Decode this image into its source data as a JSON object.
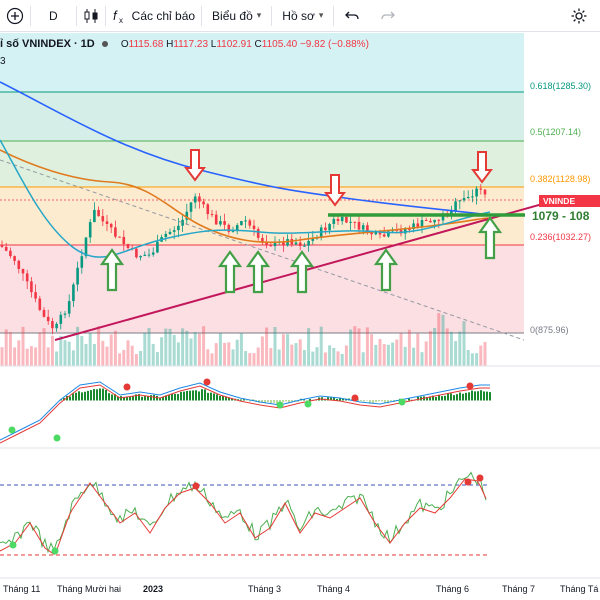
{
  "toolbar": {
    "symbol": "D",
    "indicators_label": "Các chỉ báo",
    "chart_type_label": "Biểu đồ",
    "profile_label": "Hồ sơ",
    "dropdown_glyph": "▾"
  },
  "legend": {
    "symbol": "ỉ số VNINDEX · 1D",
    "o": "O",
    "o_val": "1115.68",
    "h": "H",
    "h_val": "1117.23",
    "l": "L",
    "l_val": "1102.91",
    "c": "C",
    "c_val": "1105.40",
    "change": "−9.82 (−0.88%)",
    "corner": "3"
  },
  "fib_levels": [
    {
      "label": "0.618(1285.30)",
      "color": "#089981"
    },
    {
      "label": "0.5(1207.14)",
      "color": "#4caf50"
    },
    {
      "label": "0.382(1128.98)",
      "color": "#ff9800"
    },
    {
      "label": "0.236(1032.27)",
      "color": "#f23645"
    },
    {
      "label": "0(875.96)",
      "color": "#787b86"
    }
  ],
  "annotations": {
    "support_zone": "1079 - 108",
    "price_badge": "VNINDE"
  },
  "x_axis": [
    "Tháng 11",
    "Tháng Mười hai",
    "2023",
    "Tháng 3",
    "Tháng 4",
    "Tháng 6",
    "Tháng 7",
    "Tháng Tá"
  ],
  "colors": {
    "up": "#089981",
    "down": "#f23645",
    "ma_blue": "#2962ff",
    "ma_orange": "#e07a1f",
    "ma_cyan": "#26a7c7",
    "trendline": "#c2185b",
    "arrow_red": "#e53935",
    "arrow_green": "#43a047"
  },
  "icons": [
    "plus-icon",
    "candles-icon",
    "fx-icon",
    "undo-icon",
    "redo-icon",
    "settings-icon"
  ]
}
